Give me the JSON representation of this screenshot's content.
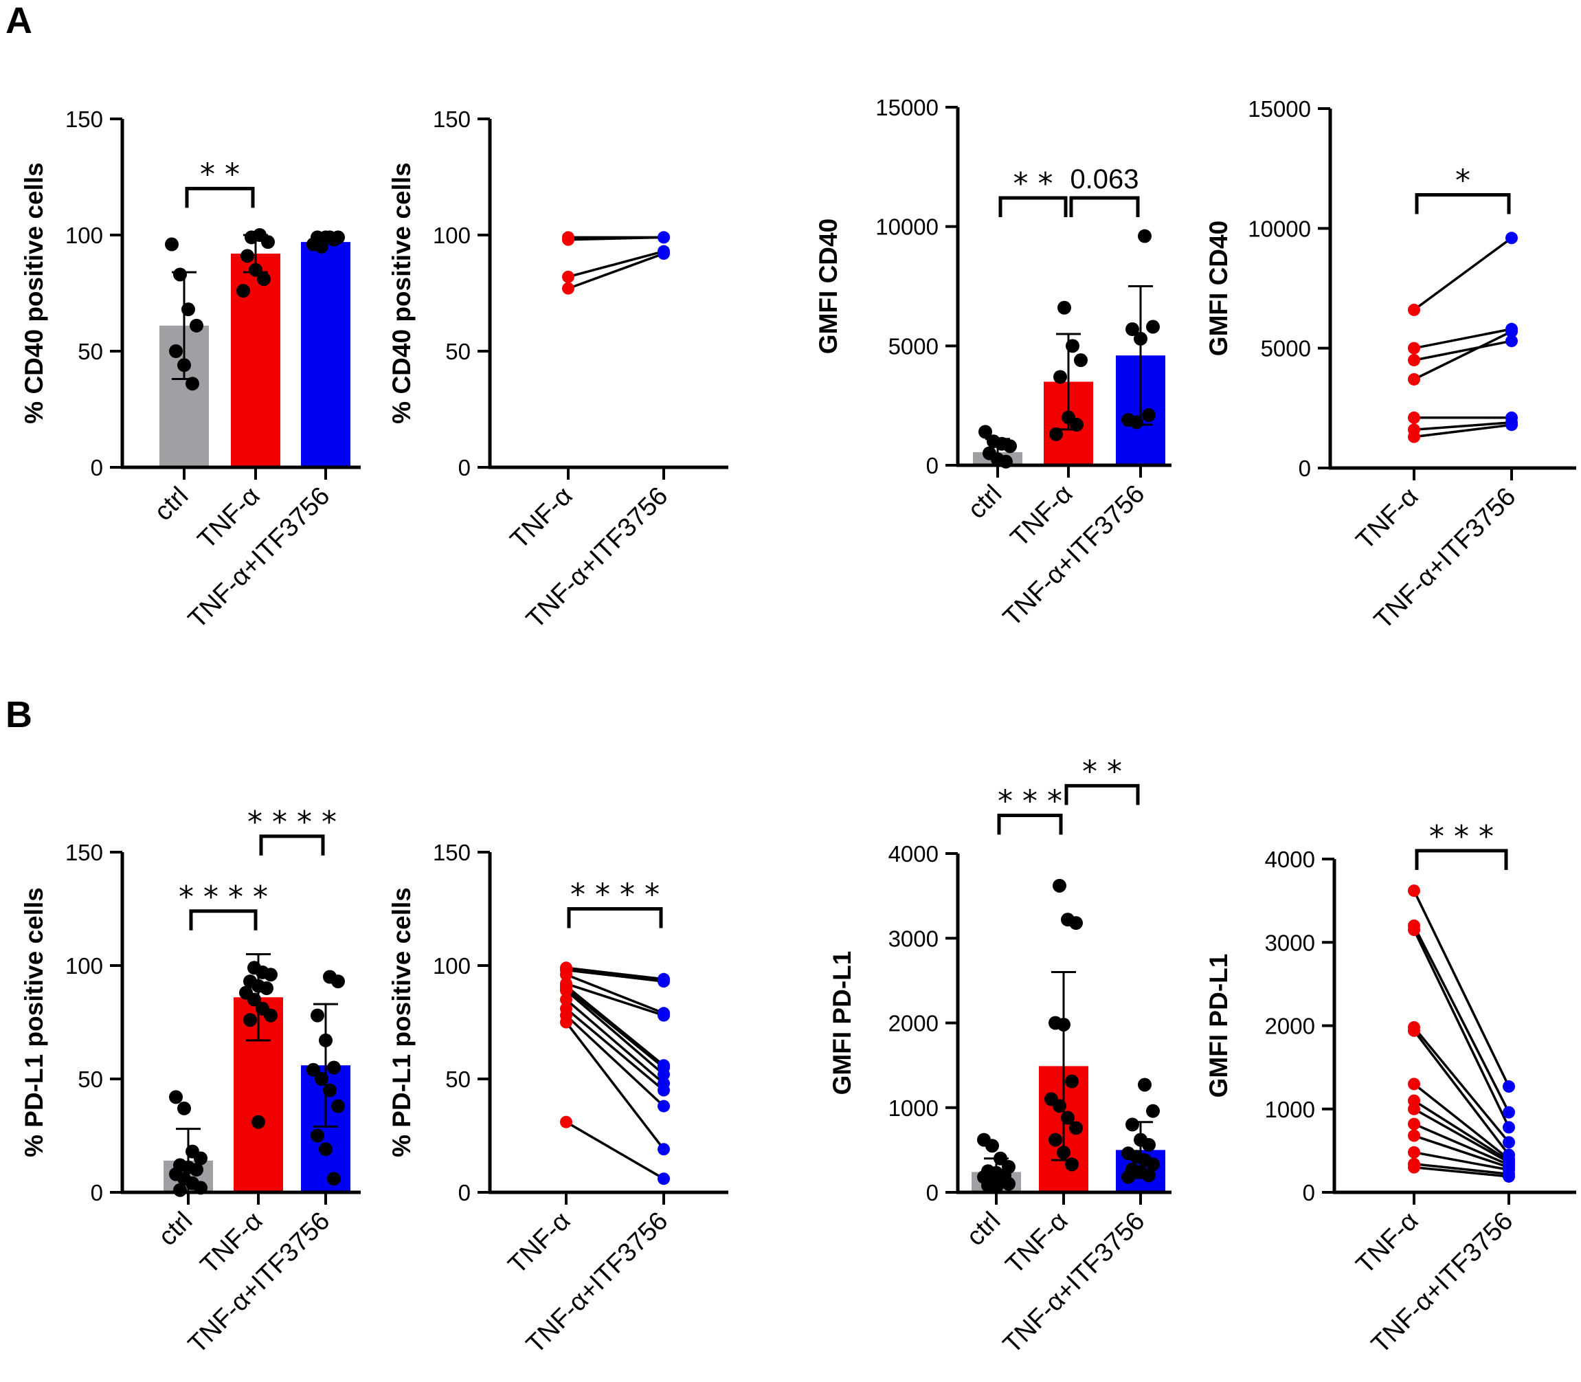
{
  "panels": [
    {
      "letter": "A"
    },
    {
      "letter": "B"
    }
  ],
  "chart_data": [
    {
      "id": "A1",
      "type": "bar",
      "ylabel": "% CD40 positive cells",
      "ylim": [
        0,
        150
      ],
      "yticks": [
        0,
        50,
        100,
        150
      ],
      "categories": [
        "ctrl",
        "TNF-α",
        "TNF-α+ITF3756"
      ],
      "colors": [
        "#a0a0a4",
        "#f20000",
        "#0000f5"
      ],
      "values": [
        61,
        92,
        97
      ],
      "sd": [
        23,
        8,
        0
      ],
      "points": [
        [
          96,
          83,
          68,
          61,
          50,
          44,
          36
        ],
        [
          99,
          100,
          97,
          91,
          85,
          81,
          76
        ],
        [
          99,
          99,
          99,
          99,
          98,
          96,
          95
        ]
      ],
      "sig": [
        {
          "from": 0,
          "to": 1,
          "label": "* *",
          "y": 120
        }
      ]
    },
    {
      "id": "A2",
      "type": "paired",
      "ylabel": "% CD40 positive cells",
      "ylim": [
        0,
        150
      ],
      "yticks": [
        0,
        50,
        100,
        150
      ],
      "categories": [
        "TNF-α",
        "TNF-α+ITF3756"
      ],
      "pairs": [
        [
          99,
          99
        ],
        [
          98,
          99
        ],
        [
          82,
          93
        ],
        [
          77,
          92
        ]
      ],
      "sig": []
    },
    {
      "id": "A3",
      "type": "bar",
      "ylabel": "GMFI CD40",
      "ylim": [
        0,
        15000
      ],
      "yticks": [
        0,
        5000,
        10000,
        15000
      ],
      "categories": [
        "ctrl",
        "TNF-α",
        "TNF-α+ITF3756"
      ],
      "colors": [
        "#a0a0a4",
        "#f20000",
        "#0000f5"
      ],
      "values": [
        550,
        3500,
        4600
      ],
      "sd": [
        550,
        2000,
        2900
      ],
      "points": [
        [
          1400,
          1000,
          900,
          800,
          500,
          250,
          150
        ],
        [
          6600,
          5000,
          4400,
          3700,
          2000,
          1700,
          1300
        ],
        [
          9600,
          5800,
          5700,
          5300,
          2100,
          1900,
          1800
        ]
      ],
      "sig": [
        {
          "from": 0,
          "to": 1,
          "label": "* *",
          "y": 11200
        },
        {
          "from": 1,
          "to": 2,
          "label": "0.063",
          "y": 11200
        }
      ]
    },
    {
      "id": "A4",
      "type": "paired",
      "ylabel": "GMFI CD40",
      "ylim": [
        0,
        15000
      ],
      "yticks": [
        0,
        5000,
        10000,
        15000
      ],
      "categories": [
        "TNF-α",
        "TNF-α+ITF3756"
      ],
      "pairs": [
        [
          6600,
          9600
        ],
        [
          5000,
          5800
        ],
        [
          4500,
          5300
        ],
        [
          3700,
          5700
        ],
        [
          2100,
          2100
        ],
        [
          1600,
          1900
        ],
        [
          1300,
          1800
        ]
      ],
      "sig": [
        {
          "from": 0,
          "to": 1,
          "label": "*",
          "y": 11400
        }
      ]
    },
    {
      "id": "B1",
      "type": "bar",
      "ylabel": "% PD-L1 positive cells",
      "ylim": [
        0,
        150
      ],
      "yticks": [
        0,
        50,
        100,
        150
      ],
      "categories": [
        "ctrl",
        "TNF-α",
        "TNF-α+ITF3756"
      ],
      "colors": [
        "#a0a0a4",
        "#f20000",
        "#0000f5"
      ],
      "values": [
        14,
        86,
        56
      ],
      "sd": [
        14,
        19,
        27
      ],
      "points": [
        [
          42,
          37,
          18,
          15,
          12,
          11,
          10,
          8,
          6,
          4,
          2,
          1
        ],
        [
          99,
          97,
          96,
          93,
          91,
          90,
          88,
          85,
          81,
          78,
          76,
          31
        ],
        [
          95,
          93,
          78,
          67,
          55,
          54,
          50,
          45,
          38,
          25,
          19,
          6
        ]
      ],
      "sig": [
        {
          "from": 0,
          "to": 1,
          "label": "* * * *",
          "y": 124
        },
        {
          "from": 1,
          "to": 2,
          "label": "* * * *",
          "y": 157
        }
      ]
    },
    {
      "id": "B2",
      "type": "paired",
      "ylabel": "% PD-L1 positive cells",
      "ylim": [
        0,
        150
      ],
      "yticks": [
        0,
        50,
        100,
        150
      ],
      "categories": [
        "TNF-α",
        "TNF-α+ITF3756"
      ],
      "pairs": [
        [
          99,
          94
        ],
        [
          98,
          93
        ],
        [
          96,
          79
        ],
        [
          92,
          78
        ],
        [
          91,
          56
        ],
        [
          90,
          55
        ],
        [
          89,
          52
        ],
        [
          85,
          48
        ],
        [
          81,
          45
        ],
        [
          78,
          38
        ],
        [
          75,
          19
        ],
        [
          31,
          6
        ]
      ],
      "sig": [
        {
          "from": 0,
          "to": 1,
          "label": "* * * *",
          "y": 125
        }
      ]
    },
    {
      "id": "B3",
      "type": "bar",
      "ylabel": "GMFI PD-L1",
      "ylim": [
        0,
        4000
      ],
      "yticks": [
        0,
        1000,
        2000,
        3000,
        4000
      ],
      "categories": [
        "ctrl",
        "TNF-α",
        "TNF-α+ITF3756"
      ],
      "colors": [
        "#a0a0a4",
        "#f20000",
        "#0000f5"
      ],
      "values": [
        240,
        1490,
        500
      ],
      "sd": [
        160,
        1110,
        330
      ],
      "points": [
        [
          620,
          550,
          400,
          300,
          250,
          230,
          200,
          180,
          150,
          120,
          100,
          80,
          60
        ],
        [
          3620,
          3220,
          3180,
          2000,
          1980,
          1310,
          1100,
          1020,
          880,
          760,
          620,
          470,
          330
        ],
        [
          1270,
          960,
          800,
          620,
          560,
          460,
          420,
          380,
          330,
          270,
          240,
          200,
          180
        ]
      ],
      "sig": [
        {
          "from": 0,
          "to": 1,
          "label": "* * *",
          "y": 4450
        },
        {
          "from": 1,
          "to": 2,
          "label": "* *",
          "y": 4800
        }
      ]
    },
    {
      "id": "B4",
      "type": "paired",
      "ylabel": "GMFI PD-L1",
      "ylim": [
        0,
        4000
      ],
      "yticks": [
        0,
        1000,
        2000,
        3000,
        4000
      ],
      "categories": [
        "TNF-α",
        "TNF-α+ITF3756"
      ],
      "pairs": [
        [
          3620,
          1270
        ],
        [
          3200,
          960
        ],
        [
          3150,
          780
        ],
        [
          1980,
          600
        ],
        [
          1940,
          450
        ],
        [
          1300,
          400
        ],
        [
          1100,
          380
        ],
        [
          1000,
          360
        ],
        [
          820,
          330
        ],
        [
          680,
          300
        ],
        [
          480,
          270
        ],
        [
          340,
          220
        ],
        [
          300,
          190
        ]
      ],
      "sig": [
        {
          "from": 0,
          "to": 1,
          "label": "* * *",
          "y": 4100
        }
      ]
    }
  ]
}
